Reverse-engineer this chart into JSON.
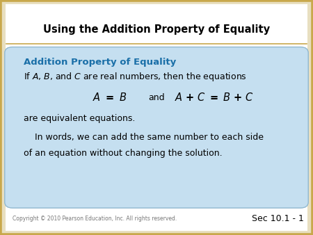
{
  "title": "Using the Addition Property of Equality",
  "title_fontsize": 10.5,
  "title_color": "#000000",
  "bg_color": "#e8dfc0",
  "slide_bg": "#ffffff",
  "box_bg": "#c5dff0",
  "box_border_color": "#90b8d0",
  "header_color": "#1a6fa8",
  "header_text": "Addition Property of Equality",
  "header_fontsize": 9.5,
  "line1": "If $\\mathit{A}$, $\\mathit{B}$, and $\\mathit{C}$ are real numbers, then the equations",
  "line1_fontsize": 9.0,
  "line2_fontsize": 10.5,
  "line3": "are equivalent equations.",
  "line3_fontsize": 9.0,
  "line4": "    In words, we can add the same number to each side",
  "line5": "of an equation without changing the solution.",
  "line45_fontsize": 9.0,
  "separator_color": "#c8a84b",
  "copyright_text": "Copyright © 2010 Pearson Education, Inc. All rights reserved.",
  "copyright_fontsize": 5.5,
  "secnum_text": "Sec 10.1 - 1",
  "secnum_fontsize": 9.0,
  "outer_border_color": "#c8a84b",
  "outer_border_lw": 4
}
